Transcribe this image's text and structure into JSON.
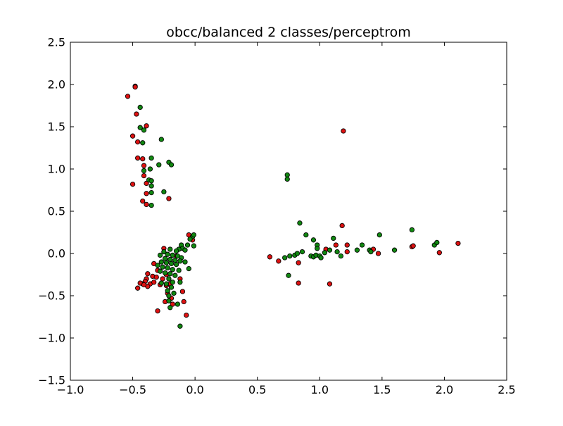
{
  "chart_data": {
    "type": "scatter",
    "title": "obcc/balanced 2 classes/perceptrom",
    "xlabel": "",
    "ylabel": "",
    "xlim": [
      -1.0,
      2.5
    ],
    "ylim": [
      -1.5,
      2.5
    ],
    "xticks": [
      -1.0,
      -0.5,
      0.0,
      0.5,
      1.0,
      1.5,
      2.0,
      2.5
    ],
    "yticks": [
      -1.5,
      -1.0,
      -0.5,
      0.0,
      0.5,
      1.0,
      1.5,
      2.0,
      2.5
    ],
    "xtick_labels": [
      "−1.0",
      "−0.5",
      "0.0",
      "0.5",
      "1.0",
      "1.5",
      "2.0",
      "2.5"
    ],
    "ytick_labels": [
      "−1.5",
      "−1.0",
      "−0.5",
      "0.0",
      "0.5",
      "1.0",
      "1.5",
      "2.0",
      "2.5"
    ],
    "grid": false,
    "series": [
      {
        "color": "#dd1111",
        "points": [
          [
            -0.48,
            1.98
          ],
          [
            -0.48,
            1.97
          ],
          [
            -0.54,
            1.86
          ],
          [
            -0.47,
            1.65
          ],
          [
            -0.39,
            1.51
          ],
          [
            -0.5,
            1.39
          ],
          [
            -0.46,
            1.32
          ],
          [
            -0.46,
            1.13
          ],
          [
            -0.42,
            1.12
          ],
          [
            -0.41,
            1.04
          ],
          [
            -0.41,
            0.92
          ],
          [
            -0.39,
            0.83
          ],
          [
            -0.5,
            0.82
          ],
          [
            -0.39,
            0.71
          ],
          [
            -0.42,
            0.62
          ],
          [
            -0.39,
            0.58
          ],
          [
            -0.21,
            0.65
          ],
          [
            -0.25,
            0.06
          ],
          [
            -0.05,
            0.22
          ],
          [
            -0.02,
            0.16
          ],
          [
            -0.15,
            -0.03
          ],
          [
            -0.33,
            -0.12
          ],
          [
            -0.3,
            -0.2
          ],
          [
            -0.38,
            -0.24
          ],
          [
            -0.34,
            -0.27
          ],
          [
            -0.39,
            -0.3
          ],
          [
            -0.31,
            -0.28
          ],
          [
            -0.26,
            -0.3
          ],
          [
            -0.23,
            -0.25
          ],
          [
            -0.4,
            -0.33
          ],
          [
            -0.36,
            -0.36
          ],
          [
            -0.42,
            -0.36
          ],
          [
            -0.33,
            -0.34
          ],
          [
            -0.28,
            -0.37
          ],
          [
            -0.44,
            -0.35
          ],
          [
            -0.38,
            -0.39
          ],
          [
            -0.41,
            -0.37
          ],
          [
            -0.46,
            -0.41
          ],
          [
            -0.23,
            -0.38
          ],
          [
            -0.2,
            -0.36
          ],
          [
            -0.22,
            -0.47
          ],
          [
            -0.19,
            -0.53
          ],
          [
            -0.24,
            -0.57
          ],
          [
            -0.18,
            -0.6
          ],
          [
            -0.1,
            -0.45
          ],
          [
            -0.09,
            -0.57
          ],
          [
            -0.3,
            -0.68
          ],
          [
            -0.07,
            -0.73
          ],
          [
            -0.12,
            -0.3
          ],
          [
            0.6,
            -0.04
          ],
          [
            0.67,
            -0.09
          ],
          [
            0.83,
            -0.11
          ],
          [
            0.83,
            -0.35
          ],
          [
            1.08,
            -0.36
          ],
          [
            1.05,
            0.05
          ],
          [
            1.13,
            0.1
          ],
          [
            1.18,
            0.33
          ],
          [
            1.19,
            1.45
          ],
          [
            1.22,
            0.1
          ],
          [
            1.22,
            0.02
          ],
          [
            1.43,
            0.05
          ],
          [
            1.47,
            0.0
          ],
          [
            1.74,
            0.08
          ],
          [
            1.75,
            0.09
          ],
          [
            1.96,
            0.01
          ],
          [
            2.11,
            0.12
          ]
        ]
      },
      {
        "color": "#118811",
        "points": [
          [
            -0.44,
            1.73
          ],
          [
            -0.44,
            1.49
          ],
          [
            -0.41,
            1.46
          ],
          [
            -0.42,
            1.31
          ],
          [
            -0.27,
            1.35
          ],
          [
            -0.35,
            1.13
          ],
          [
            -0.29,
            1.05
          ],
          [
            -0.21,
            1.08
          ],
          [
            -0.19,
            1.05
          ],
          [
            -0.41,
            0.98
          ],
          [
            -0.36,
            1.0
          ],
          [
            -0.37,
            0.87
          ],
          [
            -0.35,
            0.86
          ],
          [
            -0.35,
            0.8
          ],
          [
            -0.35,
            0.72
          ],
          [
            -0.25,
            0.73
          ],
          [
            -0.35,
            0.57
          ],
          [
            -0.02,
            0.2
          ],
          [
            -0.01,
            0.22
          ],
          [
            -0.04,
            0.17
          ],
          [
            -0.06,
            0.1
          ],
          [
            -0.01,
            0.09
          ],
          [
            -0.11,
            0.1
          ],
          [
            -0.1,
            0.06
          ],
          [
            -0.13,
            0.05
          ],
          [
            -0.2,
            0.05
          ],
          [
            -0.15,
            0.03
          ],
          [
            -0.08,
            0.04
          ],
          [
            -0.25,
            0.02
          ],
          [
            -0.28,
            -0.02
          ],
          [
            -0.22,
            -0.01
          ],
          [
            -0.18,
            -0.02
          ],
          [
            -0.14,
            -0.03
          ],
          [
            -0.11,
            -0.05
          ],
          [
            -0.24,
            -0.06
          ],
          [
            -0.2,
            -0.07
          ],
          [
            -0.16,
            -0.08
          ],
          [
            -0.12,
            -0.09
          ],
          [
            -0.27,
            -0.1
          ],
          [
            -0.23,
            -0.11
          ],
          [
            -0.19,
            -0.12
          ],
          [
            -0.15,
            -0.13
          ],
          [
            -0.08,
            -0.1
          ],
          [
            -0.05,
            -0.18
          ],
          [
            -0.3,
            -0.14
          ],
          [
            -0.26,
            -0.16
          ],
          [
            -0.22,
            -0.17
          ],
          [
            -0.18,
            -0.19
          ],
          [
            -0.13,
            -0.2
          ],
          [
            -0.28,
            -0.21
          ],
          [
            -0.24,
            -0.23
          ],
          [
            -0.2,
            -0.24
          ],
          [
            -0.16,
            -0.26
          ],
          [
            -0.21,
            -0.3
          ],
          [
            -0.18,
            -0.34
          ],
          [
            -0.27,
            -0.35
          ],
          [
            -0.23,
            -0.36
          ],
          [
            -0.19,
            -0.4
          ],
          [
            -0.22,
            -0.44
          ],
          [
            -0.17,
            -0.47
          ],
          [
            -0.21,
            -0.5
          ],
          [
            -0.21,
            -0.56
          ],
          [
            -0.2,
            -0.64
          ],
          [
            -0.14,
            -0.6
          ],
          [
            -0.12,
            -0.86
          ],
          [
            -0.12,
            -0.34
          ],
          [
            0.74,
            0.93
          ],
          [
            0.74,
            0.88
          ],
          [
            0.84,
            0.36
          ],
          [
            0.89,
            0.22
          ],
          [
            0.95,
            0.16
          ],
          [
            0.98,
            0.1
          ],
          [
            0.98,
            0.06
          ],
          [
            0.75,
            -0.26
          ],
          [
            0.72,
            -0.05
          ],
          [
            0.76,
            -0.03
          ],
          [
            0.8,
            -0.02
          ],
          [
            0.82,
            0.0
          ],
          [
            0.86,
            0.02
          ],
          [
            0.93,
            -0.03
          ],
          [
            0.95,
            -0.04
          ],
          [
            0.97,
            -0.02
          ],
          [
            1.0,
            -0.03
          ],
          [
            1.01,
            -0.05
          ],
          [
            1.04,
            0.01
          ],
          [
            1.08,
            0.04
          ],
          [
            1.11,
            0.18
          ],
          [
            1.14,
            0.02
          ],
          [
            1.17,
            -0.03
          ],
          [
            1.3,
            0.04
          ],
          [
            1.34,
            0.1
          ],
          [
            1.4,
            0.04
          ],
          [
            1.41,
            0.02
          ],
          [
            1.48,
            0.22
          ],
          [
            1.6,
            0.04
          ],
          [
            1.74,
            0.28
          ],
          [
            1.92,
            0.1
          ],
          [
            1.94,
            0.13
          ]
        ]
      }
    ]
  }
}
